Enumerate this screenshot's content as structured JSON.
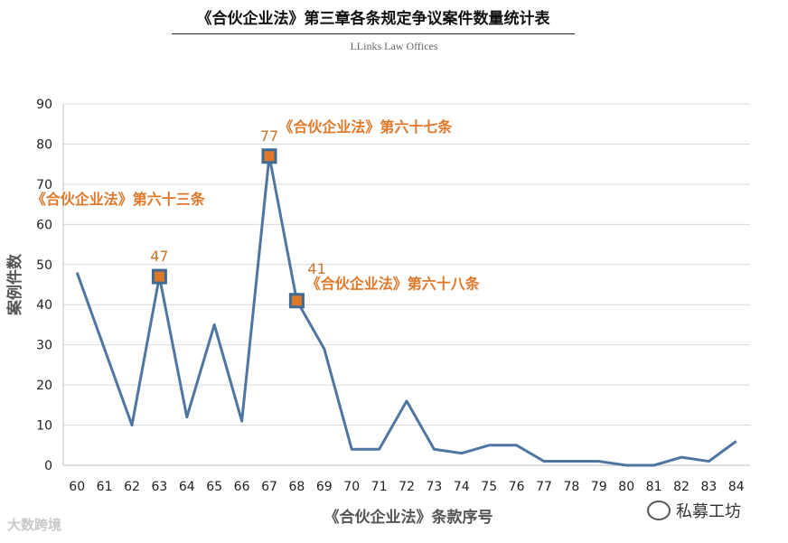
{
  "header": {
    "title": "《合伙企业法》第三章各条规定争议案件数量统计表",
    "subtitle": "LLinks Law Offices"
  },
  "watermarks": {
    "left": "大数跨境",
    "right": "私募工坊",
    "right_icon": "wechat-icon"
  },
  "colors": {
    "line": "#4e76a0",
    "marker_fill": "#e0782a",
    "marker_border": "#3f6a92",
    "annotation": "#e0782a",
    "callout_value": "#c8742a",
    "grid": "#d9d9d9",
    "axis_text": "#222222"
  },
  "chart_data": {
    "type": "line",
    "x": [
      "60",
      "61",
      "62",
      "63",
      "64",
      "65",
      "66",
      "67",
      "68",
      "69",
      "70",
      "71",
      "72",
      "73",
      "74",
      "75",
      "76",
      "77",
      "78",
      "79",
      "80",
      "81",
      "82",
      "83",
      "84"
    ],
    "series": [
      {
        "values": [
          48,
          29,
          10,
          47,
          12,
          35,
          11,
          77,
          41,
          29,
          4,
          4,
          16,
          4,
          3,
          5,
          5,
          1,
          1,
          1,
          0,
          0,
          2,
          1,
          6
        ]
      }
    ],
    "highlighted_points": [
      {
        "x": "63",
        "value": 47,
        "label": "47"
      },
      {
        "x": "67",
        "value": 77,
        "label": "77"
      },
      {
        "x": "68",
        "value": 41,
        "label": "41"
      }
    ],
    "annotations": [
      {
        "text": "《合伙企业法》第六十三条",
        "x": "61.5",
        "y": 65
      },
      {
        "text": "《合伙企业法》第六十七条",
        "x": "70.5",
        "y": 83
      },
      {
        "text": "《合伙企业法》第六十八条",
        "x": "71.5",
        "y": 44
      }
    ],
    "xlabel": "《合伙企业法》条款序号",
    "ylabel": "案例件数",
    "ylim": [
      0,
      90
    ],
    "yticks": [
      0,
      10,
      20,
      30,
      40,
      50,
      60,
      70,
      80,
      90
    ],
    "grid": true
  }
}
